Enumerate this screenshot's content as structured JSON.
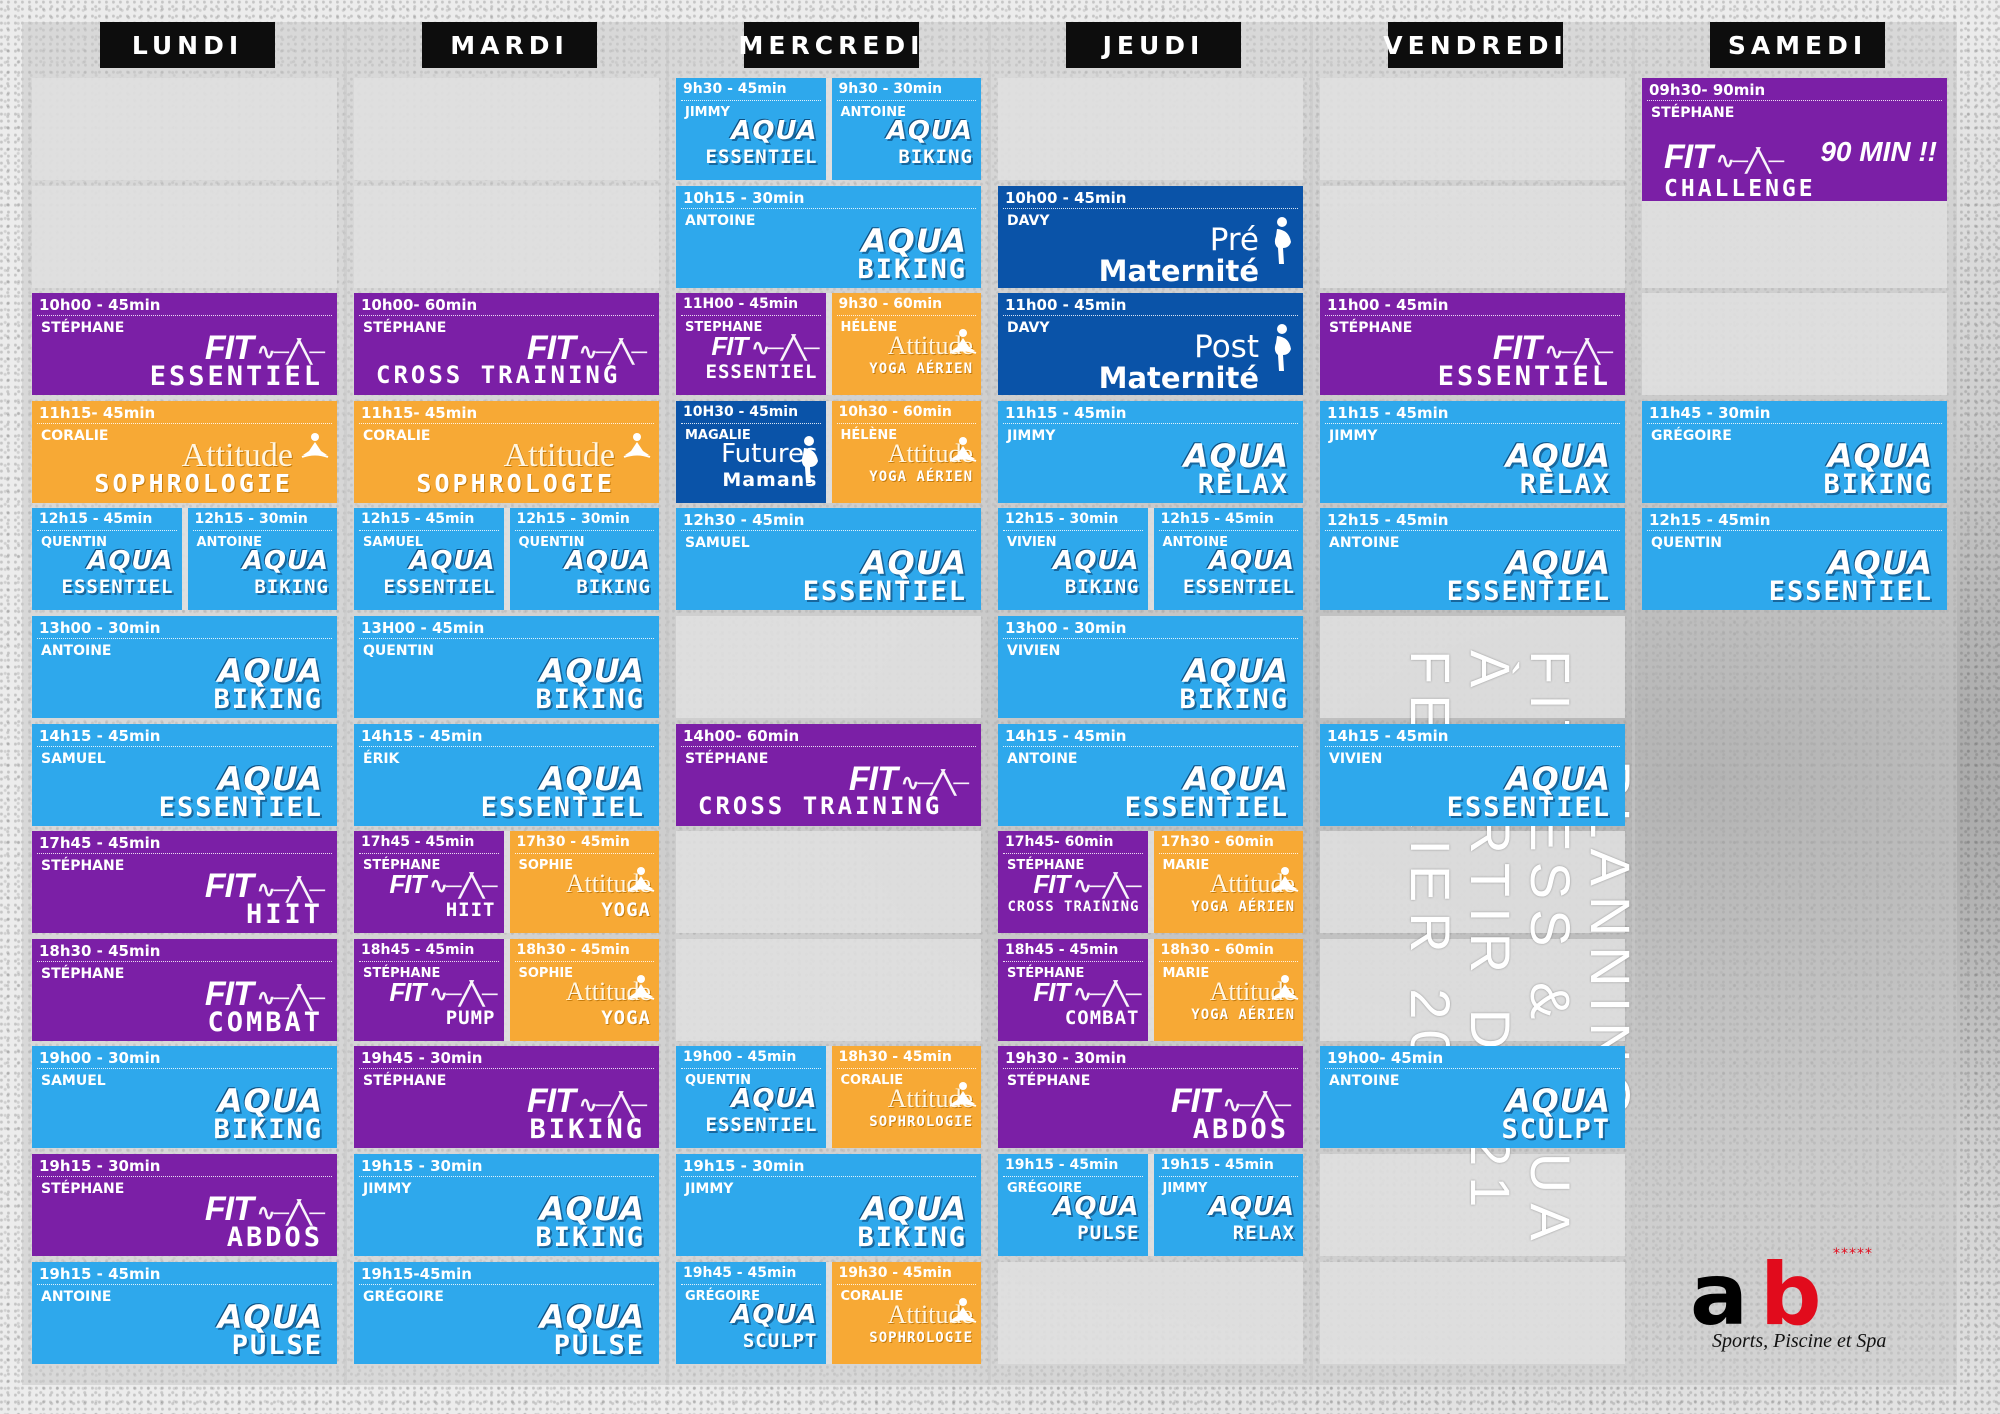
{
  "days": [
    "LUNDI",
    "MARDI",
    "MERCREDI",
    "JEUDI",
    "VENDREDI",
    "SAMEDI"
  ],
  "title": {
    "line1": "PLANNING",
    "line2": "FITNESS & AQUA",
    "line3": "À PARTIR DU 21",
    "line4": "FEVRIER 2022"
  },
  "logo": {
    "letter_a": "a",
    "letter_b": "b",
    "stars": "*****",
    "tagline": "Sports, Piscine et Spa"
  },
  "badge": "90 MIN !!",
  "cards": [
    {
      "day": 0,
      "time": "10h00 - 45min",
      "coach": "STÉPHANE",
      "style": "fit",
      "line1": "FIT",
      "line2": "ESSENTIEL"
    },
    {
      "day": 0,
      "time": "11h15- 45min",
      "coach": "CORALIE",
      "style": "att",
      "line1": "Attitude",
      "line2": "SOPHROLOGIE"
    },
    {
      "day": 0,
      "time": "12h15 - 45min",
      "coach": "QUENTIN",
      "style": "aqua",
      "line1": "AQUA",
      "line2": "ESSENTIEL"
    },
    {
      "day": 0,
      "time": "12h15 - 30min",
      "coach": "ANTOINE",
      "style": "aqua",
      "line1": "AQUA",
      "line2": "BIKING"
    },
    {
      "day": 0,
      "time": "13h00 - 30min",
      "coach": "ANTOINE",
      "style": "aqua",
      "line1": "AQUA",
      "line2": "BIKING"
    },
    {
      "day": 0,
      "time": "14h15 - 45min",
      "coach": "SAMUEL",
      "style": "aqua",
      "line1": "AQUA",
      "line2": "ESSENTIEL"
    },
    {
      "day": 0,
      "time": "17h45 - 45min",
      "coach": "STÉPHANE",
      "style": "fit",
      "line1": "FIT",
      "line2": "HIIT"
    },
    {
      "day": 0,
      "time": "18h30 - 45min",
      "coach": "STÉPHANE",
      "style": "fit",
      "line1": "FIT",
      "line2": "COMBAT"
    },
    {
      "day": 0,
      "time": "19h00 - 30min",
      "coach": "SAMUEL",
      "style": "aqua",
      "line1": "AQUA",
      "line2": "BIKING"
    },
    {
      "day": 0,
      "time": "19h15 - 30min",
      "coach": "STÉPHANE",
      "style": "fit",
      "line1": "FIT",
      "line2": "ABDOS"
    },
    {
      "day": 0,
      "time": "19h15 - 45min",
      "coach": "ANTOINE",
      "style": "aqua",
      "line1": "AQUA",
      "line2": "PULSE"
    },
    {
      "day": 1,
      "time": "10h00- 60min",
      "coach": "STÉPHANE",
      "style": "fit",
      "line1": "FIT",
      "line2": "CROSS TRAINING"
    },
    {
      "day": 1,
      "time": "11h15- 45min",
      "coach": "CORALIE",
      "style": "att",
      "line1": "Attitude",
      "line2": "SOPHROLOGIE"
    },
    {
      "day": 1,
      "time": "12h15 - 45min",
      "coach": "SAMUEL",
      "style": "aqua",
      "line1": "AQUA",
      "line2": "ESSENTIEL"
    },
    {
      "day": 1,
      "time": "12h15 - 30min",
      "coach": "QUENTIN",
      "style": "aqua",
      "line1": "AQUA",
      "line2": "BIKING"
    },
    {
      "day": 1,
      "time": "13H00 - 45min",
      "coach": "QUENTIN",
      "style": "aqua",
      "line1": "AQUA",
      "line2": "BIKING"
    },
    {
      "day": 1,
      "time": "14h15 - 45min",
      "coach": "ÉRIK",
      "style": "aqua",
      "line1": "AQUA",
      "line2": "ESSENTIEL"
    },
    {
      "day": 1,
      "time": "17h45 - 45min",
      "coach": "STÉPHANE",
      "style": "fit",
      "line1": "FIT",
      "line2": "HIIT"
    },
    {
      "day": 1,
      "time": "17h30 - 45min",
      "coach": "SOPHIE",
      "style": "att",
      "line1": "Attitude",
      "line2": "YOGA"
    },
    {
      "day": 1,
      "time": "18h45 - 45min",
      "coach": "STÉPHANE",
      "style": "fit",
      "line1": "FIT",
      "line2": "PUMP"
    },
    {
      "day": 1,
      "time": "18h30 - 45min",
      "coach": "SOPHIE",
      "style": "att",
      "line1": "Attitude",
      "line2": "YOGA"
    },
    {
      "day": 1,
      "time": "19h45 - 30min",
      "coach": "STÉPHANE",
      "style": "fit",
      "line1": "FIT",
      "line2": "BIKING"
    },
    {
      "day": 1,
      "time": "19h15 - 30min",
      "coach": "JIMMY",
      "style": "aqua",
      "line1": "AQUA",
      "line2": "BIKING"
    },
    {
      "day": 1,
      "time": "19h15-45min",
      "coach": "GRÉGOIRE",
      "style": "aqua",
      "line1": "AQUA",
      "line2": "PULSE"
    },
    {
      "day": 2,
      "time": "9h30 - 45min",
      "coach": "JIMMY",
      "style": "aqua",
      "line1": "AQUA",
      "line2": "ESSENTIEL"
    },
    {
      "day": 2,
      "time": "9h30 - 30min",
      "coach": "ANTOINE",
      "style": "aqua",
      "line1": "AQUA",
      "line2": "BIKING"
    },
    {
      "day": 2,
      "time": "10h15 - 30min",
      "coach": "ANTOINE",
      "style": "aqua",
      "line1": "AQUA",
      "line2": "BIKING"
    },
    {
      "day": 2,
      "time": "11H00 - 45min",
      "coach": "STEPHANE",
      "style": "fit",
      "line1": "FIT",
      "line2": "ESSENTIEL"
    },
    {
      "day": 2,
      "time": "9h30 - 60min",
      "coach": "HÉLÈNE",
      "style": "att",
      "line1": "Attitude",
      "line2": "YOGA AÉRIEN"
    },
    {
      "day": 2,
      "time": "10H30 - 45min",
      "coach": "MAGALIE",
      "style": "mat",
      "line1": "Futures",
      "line2": "Mamans"
    },
    {
      "day": 2,
      "time": "10h30 - 60min",
      "coach": "HÉLÈNE",
      "style": "att",
      "line1": "Attitude",
      "line2": "YOGA AÉRIEN"
    },
    {
      "day": 2,
      "time": "12h30 - 45min",
      "coach": "SAMUEL",
      "style": "aqua",
      "line1": "AQUA",
      "line2": "ESSENTIEL"
    },
    {
      "day": 2,
      "time": "14h00- 60min",
      "coach": "STÉPHANE",
      "style": "fit",
      "line1": "FIT",
      "line2": "CROSS TRAINING"
    },
    {
      "day": 2,
      "time": "19h00 - 45min",
      "coach": "QUENTIN",
      "style": "aqua",
      "line1": "AQUA",
      "line2": "ESSENTIEL"
    },
    {
      "day": 2,
      "time": "18h30 - 45min",
      "coach": "CORALIE",
      "style": "att",
      "line1": "Attitude",
      "line2": "SOPHROLOGIE"
    },
    {
      "day": 2,
      "time": "19h15 - 30min",
      "coach": "JIMMY",
      "style": "aqua",
      "line1": "AQUA",
      "line2": "BIKING"
    },
    {
      "day": 2,
      "time": "19h45 - 45min",
      "coach": "GRÉGOIRE",
      "style": "aqua",
      "line1": "AQUA",
      "line2": "SCULPT"
    },
    {
      "day": 2,
      "time": "19h30 - 45min",
      "coach": "CORALIE",
      "style": "att",
      "line1": "Attitude",
      "line2": "SOPHROLOGIE"
    },
    {
      "day": 3,
      "time": "10h00 - 45min",
      "coach": "DAVY",
      "style": "mat",
      "line1": "Pré",
      "line2": "Maternité"
    },
    {
      "day": 3,
      "time": "11h00 - 45min",
      "coach": "DAVY",
      "style": "mat",
      "line1": "Post",
      "line2": "Maternité"
    },
    {
      "day": 3,
      "time": "11h15 - 45min",
      "coach": "JIMMY",
      "style": "aqua",
      "line1": "AQUA",
      "line2": "RELAX"
    },
    {
      "day": 3,
      "time": "12h15 - 30min",
      "coach": "VIVIEN",
      "style": "aqua",
      "line1": "AQUA",
      "line2": "BIKING"
    },
    {
      "day": 3,
      "time": "12h15 - 45min",
      "coach": "ANTOINE",
      "style": "aqua",
      "line1": "AQUA",
      "line2": "ESSENTIEL"
    },
    {
      "day": 3,
      "time": "13h00 - 30min",
      "coach": "VIVIEN",
      "style": "aqua",
      "line1": "AQUA",
      "line2": "BIKING"
    },
    {
      "day": 3,
      "time": "14h15 - 45min",
      "coach": "ANTOINE",
      "style": "aqua",
      "line1": "AQUA",
      "line2": "ESSENTIEL"
    },
    {
      "day": 3,
      "time": "17h45- 60min",
      "coach": "STÉPHANE",
      "style": "fit",
      "line1": "FIT",
      "line2": "CROSS TRAINING"
    },
    {
      "day": 3,
      "time": "17h30 - 60min",
      "coach": "MARIE",
      "style": "att",
      "line1": "Attitude",
      "line2": "YOGA AÉRIEN"
    },
    {
      "day": 3,
      "time": "18h45 - 45min",
      "coach": "STÉPHANE",
      "style": "fit",
      "line1": "FIT",
      "line2": "COMBAT"
    },
    {
      "day": 3,
      "time": "18h30 - 60min",
      "coach": "MARIE",
      "style": "att",
      "line1": "Attitude",
      "line2": "YOGA AÉRIEN"
    },
    {
      "day": 3,
      "time": "19h30 - 30min",
      "coach": "STÉPHANE",
      "style": "fit",
      "line1": "FIT",
      "line2": "ABDOS"
    },
    {
      "day": 3,
      "time": "19h15 - 45min",
      "coach": "GRÉGOIRE",
      "style": "aqua",
      "line1": "AQUA",
      "line2": "PULSE"
    },
    {
      "day": 3,
      "time": "19h15 - 45min",
      "coach": "JIMMY",
      "style": "aqua",
      "line1": "AQUA",
      "line2": "RELAX"
    },
    {
      "day": 4,
      "time": "11h00 - 45min",
      "coach": "STÉPHANE",
      "style": "fit",
      "line1": "FIT",
      "line2": "ESSENTIEL"
    },
    {
      "day": 4,
      "time": "11h15 - 45min",
      "coach": "JIMMY",
      "style": "aqua",
      "line1": "AQUA",
      "line2": "RELAX"
    },
    {
      "day": 4,
      "time": "12h15 - 45min",
      "coach": "ANTOINE",
      "style": "aqua",
      "line1": "AQUA",
      "line2": "ESSENTIEL"
    },
    {
      "day": 4,
      "time": "14h15 - 45min",
      "coach": "VIVIEN",
      "style": "aqua",
      "line1": "AQUA",
      "line2": "ESSENTIEL"
    },
    {
      "day": 4,
      "time": "19h00- 45min",
      "coach": "ANTOINE",
      "style": "aqua",
      "line1": "AQUA",
      "line2": "SCULPT"
    },
    {
      "day": 5,
      "time": "09h30- 90min",
      "coach": "STÉPHANE",
      "style": "fit",
      "line1": "FIT",
      "line2": "CHALLENGE"
    },
    {
      "day": 5,
      "time": "11h45 - 30min",
      "coach": "GRÉGOIRE",
      "style": "aqua",
      "line1": "AQUA",
      "line2": "BIKING"
    },
    {
      "day": 5,
      "time": "12h15 - 45min",
      "coach": "QUENTIN",
      "style": "aqua",
      "line1": "AQUA",
      "line2": "ESSENTIEL"
    }
  ]
}
